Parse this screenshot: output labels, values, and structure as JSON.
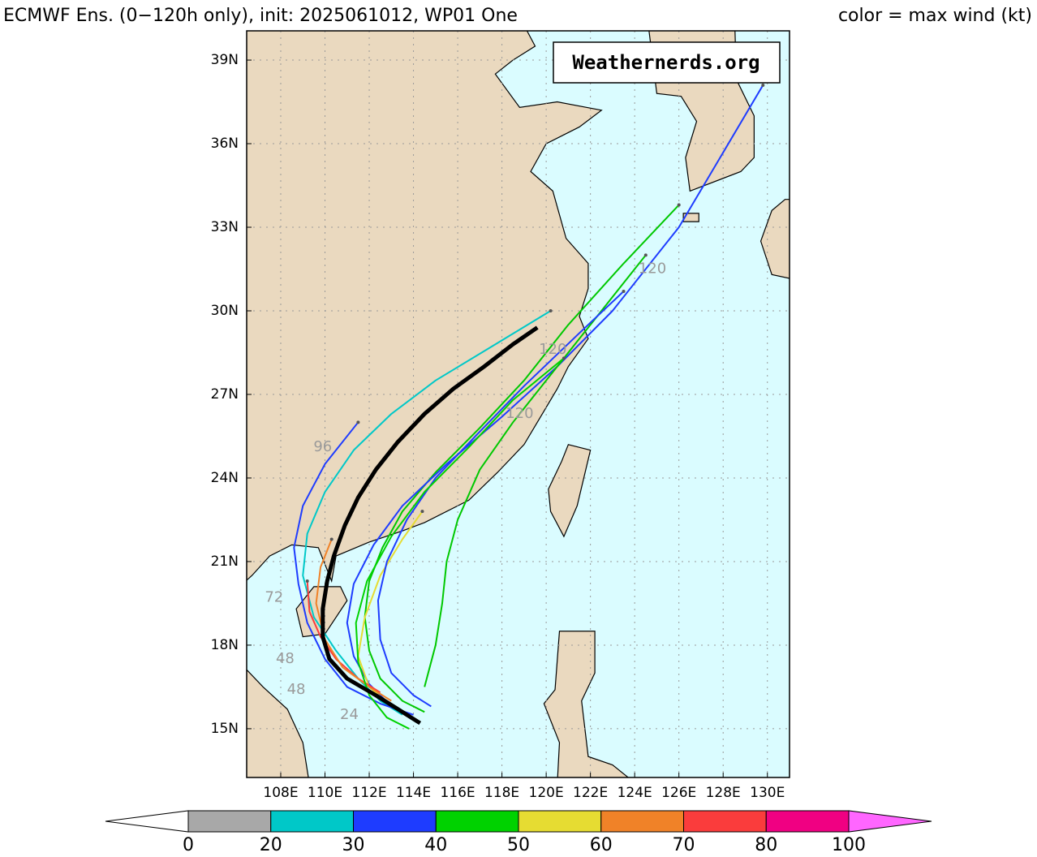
{
  "header": {
    "title": "ECMWF Ens. (0−120h only), init: 2025061012, WP01 One",
    "legend_note": "color = max wind (kt)"
  },
  "watermark": "Weathernerds.org",
  "map": {
    "lon_range": [
      106.46,
      131.0
    ],
    "lat_range": [
      13.25,
      40.05
    ],
    "grid": true,
    "land_color": "#ead9bf",
    "ocean_color": "#dafcff",
    "lon_ticks": [
      {
        "value": 108,
        "label": "108E"
      },
      {
        "value": 110,
        "label": "110E"
      },
      {
        "value": 112,
        "label": "112E"
      },
      {
        "value": 114,
        "label": "114E"
      },
      {
        "value": 116,
        "label": "116E"
      },
      {
        "value": 118,
        "label": "118E"
      },
      {
        "value": 120,
        "label": "120E"
      },
      {
        "value": 122,
        "label": "122E"
      },
      {
        "value": 124,
        "label": "124E"
      },
      {
        "value": 126,
        "label": "126E"
      },
      {
        "value": 128,
        "label": "128E"
      },
      {
        "value": 130,
        "label": "130E"
      }
    ],
    "lat_ticks": [
      {
        "value": 15,
        "label": "15N"
      },
      {
        "value": 18,
        "label": "18N"
      },
      {
        "value": 21,
        "label": "21N"
      },
      {
        "value": 24,
        "label": "24N"
      },
      {
        "value": 27,
        "label": "27N"
      },
      {
        "value": 30,
        "label": "30N"
      },
      {
        "value": 33,
        "label": "33N"
      },
      {
        "value": 36,
        "label": "36N"
      },
      {
        "value": 39,
        "label": "39N"
      }
    ],
    "members": [
      {
        "color": "#00c800",
        "lon": [
          114.5,
          113.5,
          112.5,
          112.0,
          111.8,
          112.0,
          112.6,
          113.5,
          115,
          117,
          119,
          121,
          123.5,
          126.0
        ],
        "lat": [
          15.6,
          16.0,
          16.8,
          17.8,
          19.0,
          20.3,
          21.5,
          22.8,
          24.2,
          25.8,
          27.5,
          29.5,
          31.7,
          33.8
        ]
      },
      {
        "color": "#1e3cff",
        "lon": [
          114.2,
          113,
          112,
          111.3,
          111,
          111.3,
          112.2,
          113.5,
          115.5,
          118,
          120.5,
          123,
          126,
          129.8
        ],
        "lat": [
          15.3,
          15.8,
          16.6,
          17.6,
          18.8,
          20.2,
          21.6,
          23,
          24.5,
          26.2,
          28.0,
          30.0,
          33.0,
          38.1
        ]
      },
      {
        "color": "#00c8c8",
        "lon": [
          113.5,
          112.5,
          111.5,
          110.5,
          109.5,
          109.0,
          109.2,
          110.0,
          111.3,
          113,
          115,
          117.5,
          120.2
        ],
        "lat": [
          15.5,
          16.0,
          16.8,
          17.8,
          19.0,
          20.5,
          22.0,
          23.5,
          25.0,
          26.3,
          27.5,
          28.7,
          30.0
        ]
      },
      {
        "color": "#00c800",
        "lon": [
          114.5,
          115,
          115.3,
          115.5,
          116,
          117,
          118.5,
          120.5,
          122.5,
          124.5
        ],
        "lat": [
          16.5,
          18.0,
          19.5,
          21.0,
          22.5,
          24.3,
          26.0,
          28.0,
          30.0,
          32.0
        ]
      },
      {
        "color": "#e6dc32",
        "lon": [
          113,
          112,
          111.5,
          111.8,
          112.5,
          113.5,
          114.4
        ],
        "lat": [
          15.8,
          16.5,
          17.6,
          19.0,
          20.5,
          21.8,
          22.8
        ]
      },
      {
        "color": "#fa3c3c",
        "lon": [
          112.5,
          111.5,
          110.5,
          109.8,
          109.3,
          109.2
        ],
        "lat": [
          16.3,
          16.8,
          17.5,
          18.3,
          19.2,
          20.3
        ]
      },
      {
        "color": "#f08228",
        "lon": [
          113,
          112,
          110.8,
          110.0,
          109.6,
          109.8,
          110.3
        ],
        "lat": [
          16,
          16.5,
          17.2,
          18.2,
          19.5,
          20.8,
          21.8
        ]
      },
      {
        "color": "#1e3cff",
        "lon": [
          114,
          112.5,
          111,
          110,
          109.2,
          108.8,
          108.6,
          109.0,
          110.0,
          111.5
        ],
        "lat": [
          15.5,
          15.9,
          16.5,
          17.5,
          18.8,
          20.2,
          21.5,
          23.0,
          24.5,
          26.0
        ]
      },
      {
        "color": "#1e3cff",
        "lon": [
          114.8,
          114,
          113,
          112.5,
          112.4,
          112.8,
          113.7,
          115,
          116.8,
          119,
          121.5,
          123.5
        ],
        "lat": [
          15.8,
          16.2,
          17.0,
          18.2,
          19.6,
          21.0,
          22.5,
          24.0,
          25.5,
          27.3,
          29.2,
          30.7
        ]
      },
      {
        "color": "#00d200",
        "lon": [
          113.8,
          112.8,
          112,
          111.5,
          111.4,
          111.9,
          113,
          114.5,
          116.5,
          118.5,
          120.8
        ],
        "lat": [
          15.0,
          15.4,
          16.2,
          17.4,
          18.8,
          20.3,
          21.9,
          23.5,
          25.1,
          26.8,
          28.3
        ]
      }
    ],
    "mean_track": {
      "color": "#000000",
      "lon": [
        114.3,
        113.3,
        112.3,
        111.0,
        110.2,
        109.9,
        109.9,
        110.1,
        110.4,
        110.9,
        111.5,
        112.3,
        113.3,
        114.5,
        115.8,
        117.2,
        118.5,
        119.6
      ],
      "lat": [
        15.2,
        15.7,
        16.2,
        16.8,
        17.5,
        18.3,
        19.3,
        20.3,
        21.2,
        22.3,
        23.3,
        24.3,
        25.3,
        26.3,
        27.2,
        28.0,
        28.8,
        29.4
      ]
    },
    "hour_labels": [
      {
        "text": "96",
        "lon": 109.9,
        "lat": 25.1
      },
      {
        "text": "72",
        "lon": 107.7,
        "lat": 19.7
      },
      {
        "text": "48",
        "lon": 108.2,
        "lat": 17.5
      },
      {
        "text": "48",
        "lon": 108.7,
        "lat": 16.4
      },
      {
        "text": "120",
        "lon": 124.8,
        "lat": 31.5
      },
      {
        "text": "120",
        "lon": 120.3,
        "lat": 28.6
      },
      {
        "text": "120",
        "lon": 118.8,
        "lat": 26.3
      },
      {
        "text": "24",
        "lon": 111.1,
        "lat": 15.5
      }
    ]
  },
  "colorbar": {
    "boundaries": [
      0,
      20,
      30,
      40,
      50,
      60,
      70,
      80,
      100
    ],
    "colors": [
      "#a8a8a8",
      "#00c8c8",
      "#1e3cff",
      "#00d200",
      "#e6dc32",
      "#f08228",
      "#fa3c3c",
      "#f00082"
    ],
    "under_color": "#ffffff",
    "over_color": "#ff66ff"
  }
}
